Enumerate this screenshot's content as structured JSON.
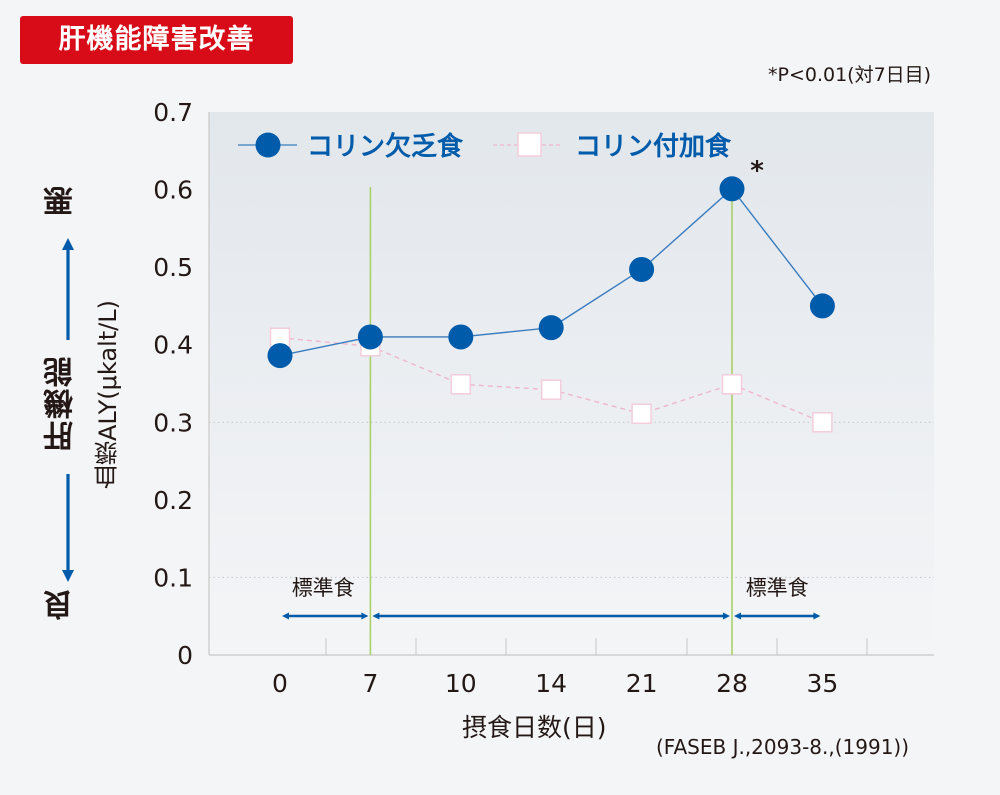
{
  "header": {
    "badge": "肝機能障害改善",
    "significance_note": "*P<0.01(対7日目)"
  },
  "side_axis": {
    "bad": "悪",
    "liver_function": "肝機能",
    "good": "良"
  },
  "footer": {
    "source": "(FASEB J.,2093-8.,(1991))"
  },
  "colors": {
    "badge": "#d70c18",
    "deficient_series": "#005bab",
    "supplemented_series": "#f0b6cc",
    "phase_line": "#a8d16a",
    "arrow": "#005bab"
  },
  "chart_data": {
    "type": "line",
    "title": "肝機能障害改善",
    "xlabel": "摂食日数(日)",
    "ylabel": "血漿ALY(μkalt/L)",
    "x": [
      0,
      7,
      10,
      14,
      21,
      28,
      35
    ],
    "categories": [
      "0",
      "7",
      "10",
      "14",
      "21",
      "28",
      "35"
    ],
    "ylim": [
      0,
      0.7
    ],
    "yticks": [
      "0",
      "0.1",
      "0.2",
      "0.3",
      "0.4",
      "0.5",
      "0.6",
      "0.7"
    ],
    "grid": "dotted at 0.1 and 0.3",
    "legend": "top-left inside plot",
    "series": [
      {
        "name": "コリン欠乏食",
        "marker": "filled-circle",
        "line": "solid",
        "values": [
          0.386,
          0.41,
          0.41,
          0.422,
          0.497,
          0.601,
          0.45
        ]
      },
      {
        "name": "コリン付加食",
        "marker": "open-square",
        "line": "dashed",
        "values": [
          0.409,
          0.398,
          0.349,
          0.342,
          0.311,
          0.349,
          0.3
        ]
      }
    ],
    "annotations": [
      {
        "text": "*",
        "at_x": "28",
        "series": "コリン欠乏食"
      },
      {
        "text": "標準食",
        "type": "phase-arrow",
        "from": "0",
        "to": "7"
      },
      {
        "text": "",
        "type": "phase-arrow",
        "from": "7",
        "to": "28"
      },
      {
        "text": "標準食",
        "type": "phase-arrow",
        "from": "28",
        "to": "35"
      }
    ],
    "phase_lines_at": [
      "7",
      "28"
    ]
  }
}
